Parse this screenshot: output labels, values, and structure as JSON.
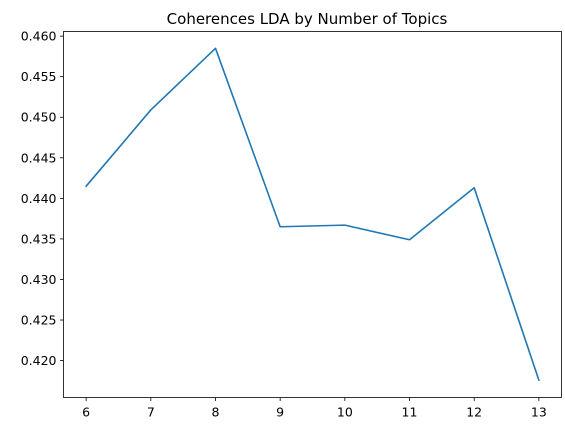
{
  "chart_data": {
    "type": "line",
    "title": "Coherences LDA by Number of Topics",
    "xlabel": "",
    "ylabel": "",
    "x": [
      6,
      7,
      8,
      9,
      10,
      11,
      12,
      13
    ],
    "series": [
      {
        "values": [
          0.4415,
          0.4509,
          0.4585,
          0.4365,
          0.4367,
          0.4349,
          0.4413,
          0.4176
        ],
        "color": "#1f77b4"
      }
    ],
    "x_ticks": [
      "6",
      "7",
      "8",
      "9",
      "10",
      "11",
      "12",
      "13"
    ],
    "y_ticks": [
      "0.420",
      "0.425",
      "0.430",
      "0.435",
      "0.440",
      "0.445",
      "0.450",
      "0.455",
      "0.460"
    ],
    "xlim": [
      5.65,
      13.35
    ],
    "ylim": [
      0.41545,
      0.46057
    ],
    "grid": false,
    "legend": "none"
  }
}
